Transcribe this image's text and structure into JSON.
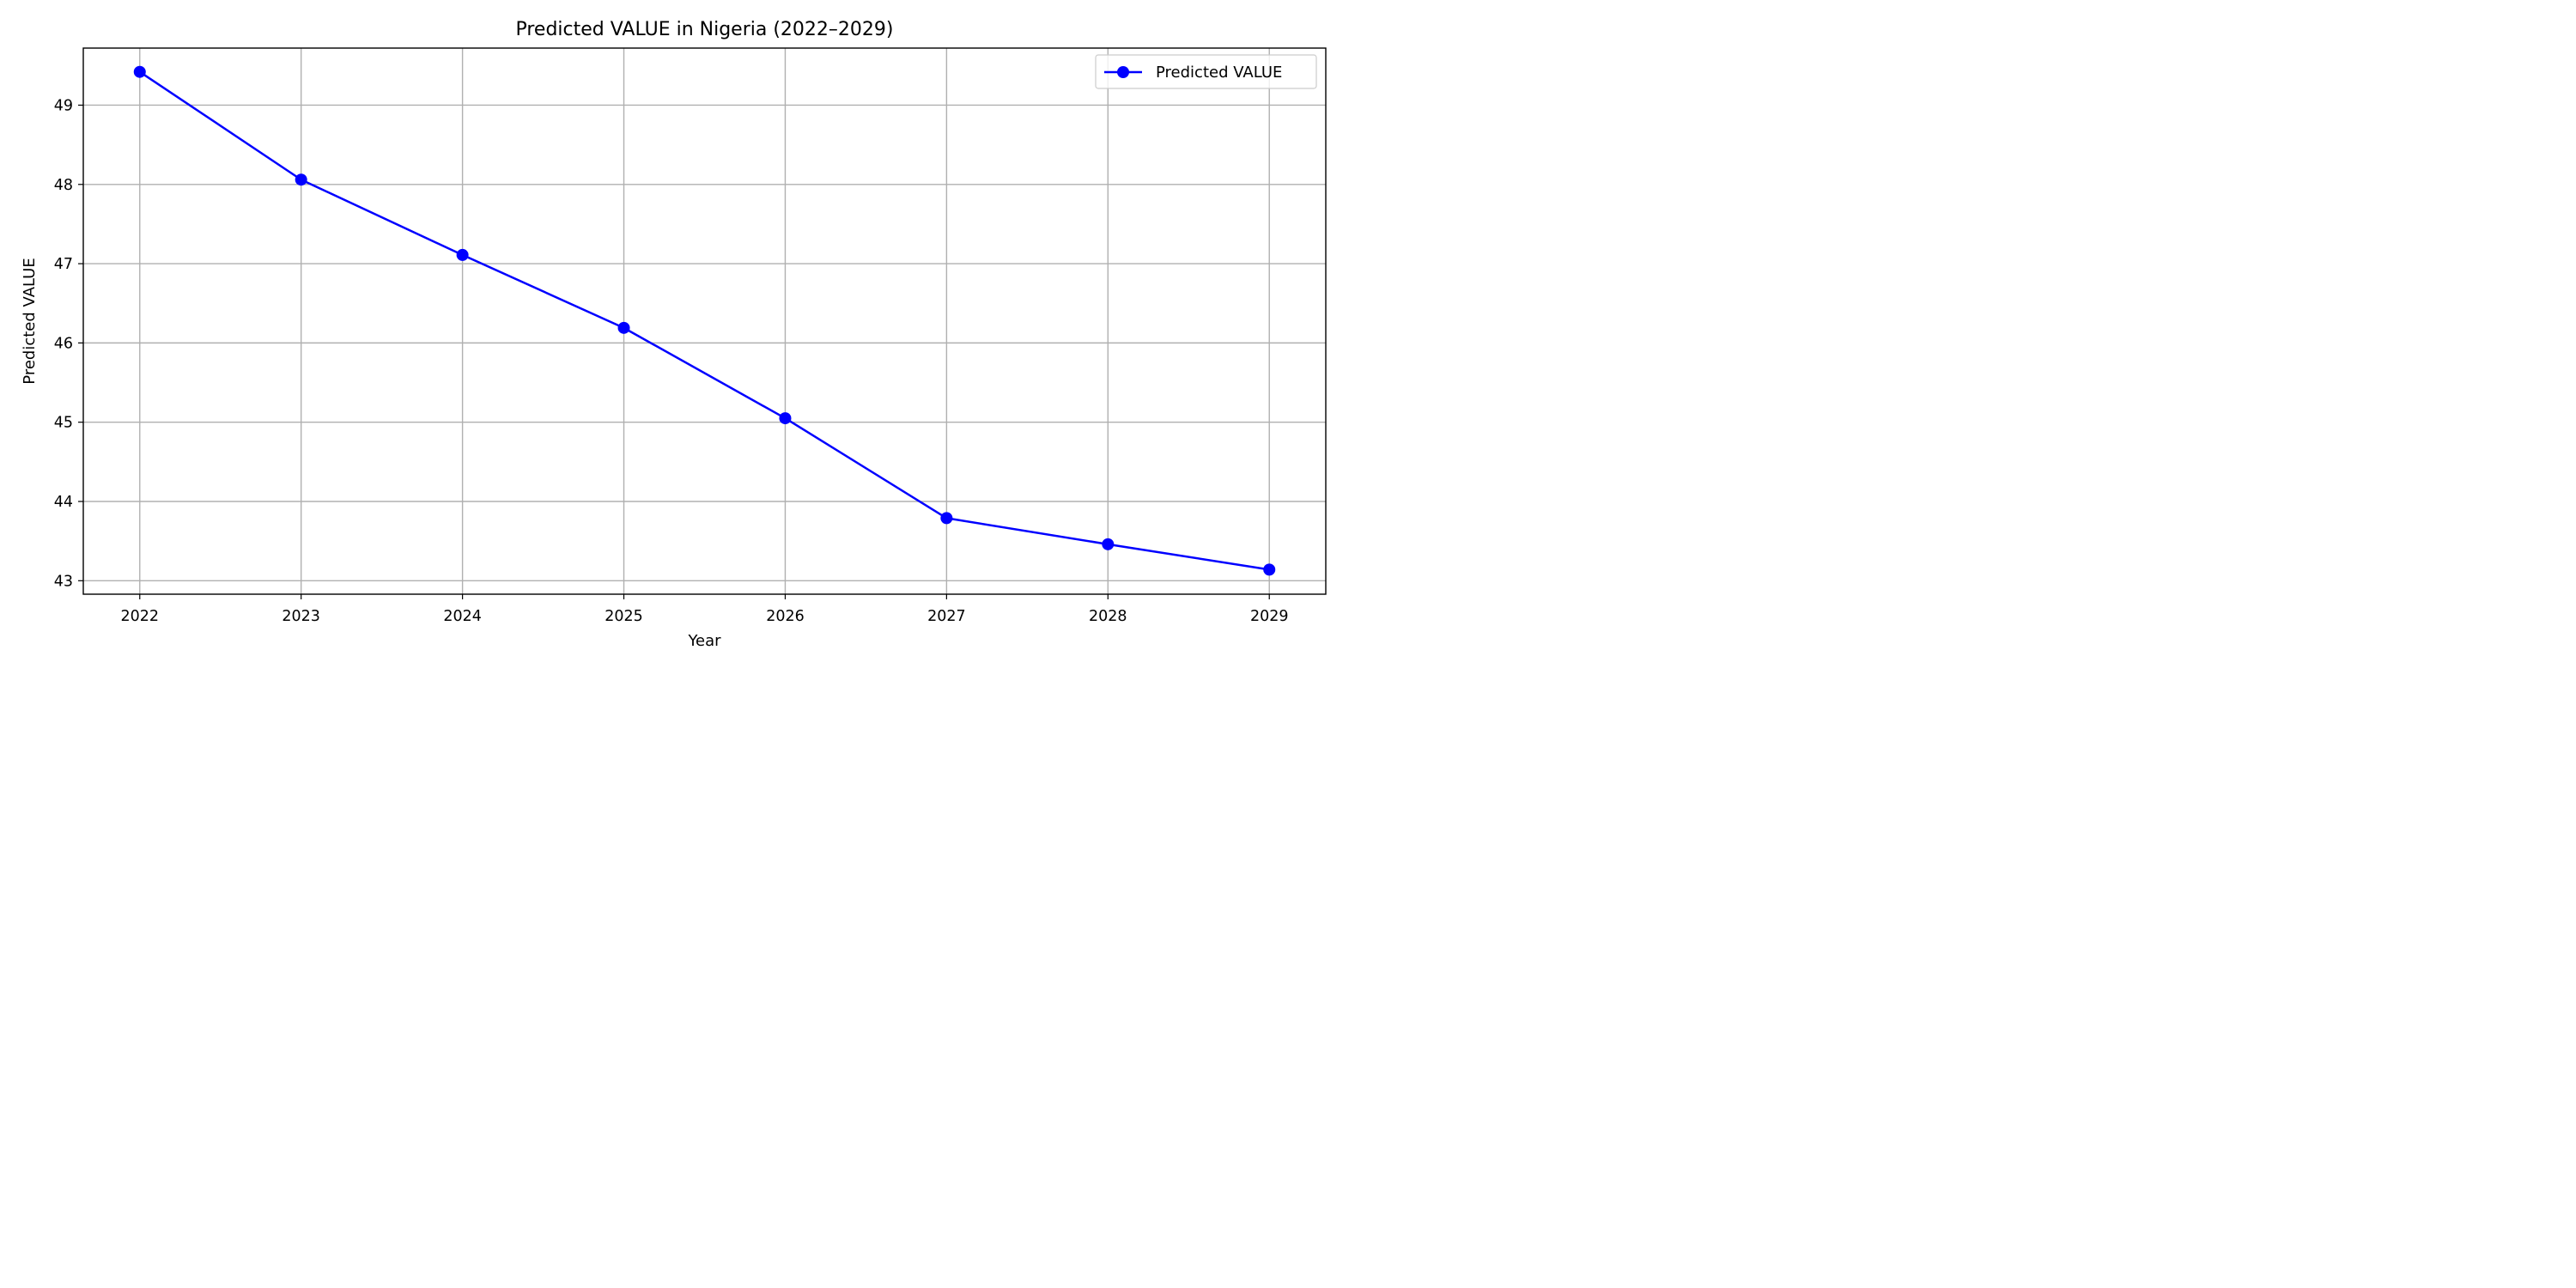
{
  "chart_data": {
    "type": "line",
    "title": "Predicted VALUE in Nigeria (2022–2029)",
    "xlabel": "Year",
    "ylabel": "Predicted VALUE",
    "x": [
      2022,
      2023,
      2024,
      2025,
      2026,
      2027,
      2028,
      2029
    ],
    "x_ticks": [
      "2022",
      "2023",
      "2024",
      "2025",
      "2026",
      "2027",
      "2028",
      "2029"
    ],
    "y_ticks": [
      "43",
      "44",
      "45",
      "46",
      "47",
      "48",
      "49"
    ],
    "xlim": [
      2021.65,
      2029.35
    ],
    "ylim": [
      42.83,
      49.72
    ],
    "grid": true,
    "legend_position": "top-right",
    "series": [
      {
        "name": "Predicted VALUE",
        "color": "#0000ff",
        "marker": "circle",
        "values": [
          49.42,
          48.06,
          47.11,
          46.19,
          45.05,
          43.79,
          43.46,
          43.14
        ]
      }
    ]
  }
}
